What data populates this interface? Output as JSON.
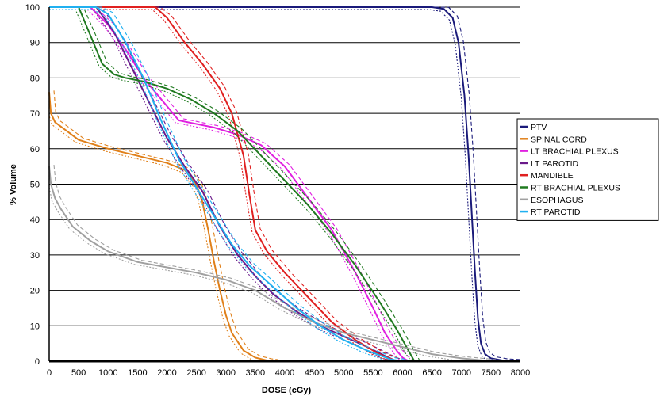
{
  "chart_data": {
    "type": "line",
    "title": "",
    "xlabel": "DOSE (cGy)",
    "ylabel": "% Volume",
    "xlim": [
      0,
      8000
    ],
    "ylim": [
      0,
      100
    ],
    "x_ticks": [
      0,
      500,
      1000,
      1500,
      2000,
      2500,
      3000,
      3500,
      4000,
      4500,
      5000,
      5500,
      6000,
      6500,
      7000,
      7500,
      8000
    ],
    "y_ticks": [
      0,
      10,
      20,
      30,
      40,
      50,
      60,
      70,
      80,
      90,
      100
    ],
    "grid": "horizontal",
    "legend_position": "right",
    "series": [
      {
        "name": "PTV",
        "color": "#1a1a7a",
        "points": [
          [
            0,
            100
          ],
          [
            6500,
            100
          ],
          [
            6700,
            99.5
          ],
          [
            6850,
            97
          ],
          [
            6950,
            90
          ],
          [
            7050,
            75
          ],
          [
            7120,
            58
          ],
          [
            7180,
            40
          ],
          [
            7230,
            25
          ],
          [
            7280,
            12
          ],
          [
            7330,
            5
          ],
          [
            7400,
            2
          ],
          [
            7500,
            0.8
          ],
          [
            7700,
            0.2
          ],
          [
            8000,
            0
          ]
        ]
      },
      {
        "name": "SPINAL CORD",
        "color": "#e0801a",
        "points": [
          [
            0,
            76
          ],
          [
            30,
            70
          ],
          [
            100,
            67.5
          ],
          [
            300,
            65
          ],
          [
            500,
            62.5
          ],
          [
            800,
            61
          ],
          [
            1000,
            60
          ],
          [
            1500,
            58
          ],
          [
            2000,
            56
          ],
          [
            2300,
            54
          ],
          [
            2500,
            50
          ],
          [
            2600,
            45
          ],
          [
            2700,
            37
          ],
          [
            2800,
            28
          ],
          [
            2900,
            20
          ],
          [
            3000,
            13
          ],
          [
            3100,
            8
          ],
          [
            3300,
            3
          ],
          [
            3500,
            1
          ],
          [
            3700,
            0.2
          ],
          [
            3800,
            0
          ]
        ]
      },
      {
        "name": "LT BRACHIAL PLEXUS",
        "color": "#e020e0",
        "points": [
          [
            0,
            100
          ],
          [
            700,
            100
          ],
          [
            1000,
            95
          ],
          [
            1300,
            88
          ],
          [
            1600,
            80
          ],
          [
            1900,
            74
          ],
          [
            2200,
            68
          ],
          [
            2500,
            67
          ],
          [
            2800,
            66
          ],
          [
            3200,
            64
          ],
          [
            3600,
            61
          ],
          [
            4000,
            55
          ],
          [
            4400,
            46
          ],
          [
            4800,
            37
          ],
          [
            5200,
            25
          ],
          [
            5500,
            15
          ],
          [
            5700,
            8
          ],
          [
            5900,
            3
          ],
          [
            6000,
            1
          ],
          [
            6100,
            0
          ]
        ]
      },
      {
        "name": "LT PAROTID",
        "color": "#6a1a8a",
        "points": [
          [
            0,
            100
          ],
          [
            800,
            100
          ],
          [
            1100,
            93
          ],
          [
            1400,
            83
          ],
          [
            1700,
            73
          ],
          [
            2000,
            63
          ],
          [
            2300,
            55
          ],
          [
            2600,
            48
          ],
          [
            2900,
            38
          ],
          [
            3200,
            30
          ],
          [
            3500,
            24
          ],
          [
            3800,
            19
          ],
          [
            4200,
            14
          ],
          [
            4600,
            10
          ],
          [
            5000,
            7
          ],
          [
            5400,
            4
          ],
          [
            5700,
            1.5
          ],
          [
            5900,
            0
          ]
        ]
      },
      {
        "name": "MANDIBLE",
        "color": "#e02020",
        "points": [
          [
            0,
            100
          ],
          [
            1800,
            100
          ],
          [
            2000,
            97
          ],
          [
            2300,
            90
          ],
          [
            2600,
            84
          ],
          [
            2900,
            77
          ],
          [
            3100,
            70
          ],
          [
            3300,
            58
          ],
          [
            3400,
            47
          ],
          [
            3500,
            37
          ],
          [
            3700,
            31
          ],
          [
            4000,
            25
          ],
          [
            4400,
            18
          ],
          [
            4800,
            11
          ],
          [
            5200,
            6
          ],
          [
            5600,
            2
          ],
          [
            5900,
            0
          ]
        ]
      },
      {
        "name": "RT BRACHIAL PLEXUS",
        "color": "#207a20",
        "points": [
          [
            0,
            100
          ],
          [
            500,
            100
          ],
          [
            700,
            92
          ],
          [
            900,
            84
          ],
          [
            1100,
            81
          ],
          [
            1300,
            80
          ],
          [
            1600,
            79
          ],
          [
            2000,
            77
          ],
          [
            2400,
            74
          ],
          [
            2800,
            70
          ],
          [
            3200,
            65
          ],
          [
            3600,
            58
          ],
          [
            4000,
            51
          ],
          [
            4400,
            44
          ],
          [
            4800,
            36
          ],
          [
            5200,
            27
          ],
          [
            5600,
            17
          ],
          [
            5900,
            9
          ],
          [
            6100,
            3
          ],
          [
            6200,
            0
          ]
        ]
      },
      {
        "name": "ESOPHAGUS",
        "color": "#a0a0a0",
        "points": [
          [
            0,
            55
          ],
          [
            30,
            50
          ],
          [
            100,
            46
          ],
          [
            200,
            43
          ],
          [
            400,
            38
          ],
          [
            700,
            34
          ],
          [
            1000,
            31
          ],
          [
            1500,
            28
          ],
          [
            2000,
            26.5
          ],
          [
            2500,
            25
          ],
          [
            3000,
            23
          ],
          [
            3500,
            20
          ],
          [
            4000,
            15
          ],
          [
            4500,
            11
          ],
          [
            5000,
            8
          ],
          [
            5500,
            6
          ],
          [
            6000,
            4
          ],
          [
            6500,
            2
          ],
          [
            7000,
            0.8
          ],
          [
            7500,
            0
          ]
        ]
      },
      {
        "name": "RT PAROTID",
        "color": "#20b0f0",
        "points": [
          [
            0,
            100
          ],
          [
            800,
            100
          ],
          [
            1000,
            98
          ],
          [
            1300,
            90
          ],
          [
            1600,
            80
          ],
          [
            1900,
            68
          ],
          [
            2200,
            57
          ],
          [
            2500,
            49
          ],
          [
            2800,
            41
          ],
          [
            3100,
            33
          ],
          [
            3400,
            27
          ],
          [
            3800,
            21
          ],
          [
            4200,
            15
          ],
          [
            4600,
            10
          ],
          [
            5000,
            6
          ],
          [
            5400,
            3
          ],
          [
            5800,
            0.5
          ],
          [
            6000,
            0
          ]
        ]
      }
    ]
  }
}
